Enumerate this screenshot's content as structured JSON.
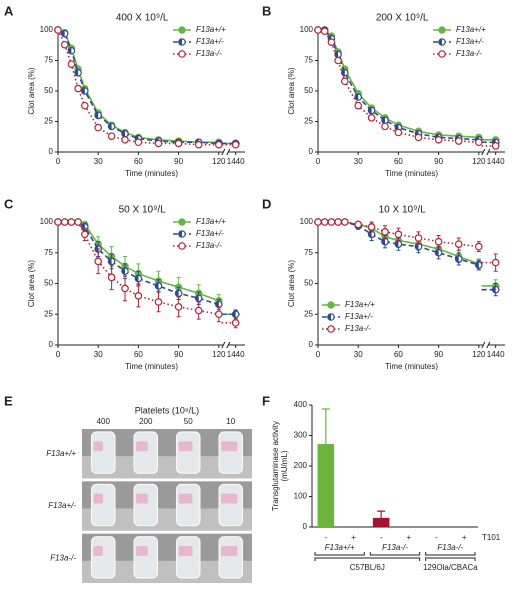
{
  "chart_data": [
    {
      "type": "line",
      "panel": "A",
      "title": "400 X 10⁹/L",
      "xlabel": "Time (minutes)",
      "ylabel": "Clot area (%)",
      "x": [
        0,
        5,
        10,
        15,
        20,
        30,
        40,
        50,
        60,
        75,
        90,
        105,
        120,
        1440
      ],
      "xlim": [
        0,
        1440
      ],
      "axis_break": [
        120,
        1440
      ],
      "xticks": [
        0,
        30,
        60,
        90,
        120,
        1440
      ],
      "ylim": [
        0,
        100
      ],
      "yticks": [
        0,
        25,
        50,
        75,
        100
      ],
      "legend": "upper right",
      "series": [
        {
          "name": "F13a+/+",
          "color": "#6ab547",
          "style": "solid",
          "marker": "filled",
          "values": [
            100,
            98,
            85,
            68,
            52,
            32,
            22,
            16,
            12,
            10,
            9,
            8,
            8,
            7
          ]
        },
        {
          "name": "F13a+/-",
          "color": "#2d4a8e",
          "style": "dashed",
          "marker": "half",
          "values": [
            100,
            97,
            83,
            65,
            50,
            30,
            21,
            15,
            11,
            9,
            8,
            8,
            7,
            7
          ]
        },
        {
          "name": "F13a-/-",
          "color": "#b0233a",
          "style": "dotted",
          "marker": "open",
          "values": [
            100,
            88,
            72,
            52,
            38,
            20,
            13,
            10,
            8,
            7,
            7,
            6,
            6,
            6
          ]
        }
      ]
    },
    {
      "type": "line",
      "panel": "B",
      "title": "200 X 10⁹/L",
      "xlabel": "Time (minutes)",
      "ylabel": "Clot area (%)",
      "x": [
        0,
        5,
        10,
        15,
        20,
        30,
        40,
        50,
        60,
        75,
        90,
        105,
        120,
        1440
      ],
      "xlim": [
        0,
        1440
      ],
      "axis_break": [
        120,
        1440
      ],
      "xticks": [
        0,
        30,
        60,
        90,
        120,
        1440
      ],
      "ylim": [
        0,
        100
      ],
      "yticks": [
        0,
        25,
        50,
        75,
        100
      ],
      "legend": "upper right",
      "series": [
        {
          "name": "F13a+/+",
          "color": "#6ab547",
          "style": "solid",
          "marker": "filled",
          "values": [
            100,
            100,
            95,
            82,
            68,
            48,
            36,
            28,
            22,
            17,
            14,
            13,
            12,
            10
          ]
        },
        {
          "name": "F13a+/-",
          "color": "#2d4a8e",
          "style": "dashed",
          "marker": "half",
          "values": [
            100,
            100,
            93,
            80,
            65,
            45,
            34,
            26,
            20,
            15,
            12,
            11,
            10,
            8
          ]
        },
        {
          "name": "F13a-/-",
          "color": "#b0233a",
          "style": "dotted",
          "marker": "open",
          "values": [
            100,
            99,
            90,
            75,
            58,
            38,
            28,
            21,
            16,
            12,
            10,
            9,
            8,
            5
          ]
        }
      ]
    },
    {
      "type": "line",
      "panel": "C",
      "title": "50 X 10⁹/L",
      "xlabel": "Time (minutes)",
      "ylabel": "Clot area (%)",
      "x": [
        0,
        5,
        10,
        15,
        20,
        30,
        40,
        50,
        60,
        75,
        90,
        105,
        120,
        1440
      ],
      "xlim": [
        0,
        1440
      ],
      "axis_break": [
        120,
        1440
      ],
      "xticks": [
        0,
        30,
        60,
        90,
        120,
        1440
      ],
      "ylim": [
        0,
        100
      ],
      "yticks": [
        0,
        25,
        50,
        75,
        100
      ],
      "legend": "upper right",
      "series": [
        {
          "name": "F13a+/+",
          "color": "#6ab547",
          "style": "solid",
          "marker": "filled",
          "values": [
            100,
            100,
            100,
            100,
            98,
            82,
            72,
            64,
            58,
            52,
            47,
            42,
            36,
            25
          ],
          "errors": [
            0,
            0,
            0,
            0,
            2,
            6,
            8,
            8,
            8,
            8,
            8,
            7,
            5,
            4
          ]
        },
        {
          "name": "F13a+/-",
          "color": "#2d4a8e",
          "style": "dashed",
          "marker": "half",
          "values": [
            100,
            100,
            100,
            100,
            96,
            78,
            68,
            60,
            54,
            48,
            42,
            38,
            33,
            25
          ],
          "errors": [
            0,
            0,
            0,
            0,
            3,
            6,
            6,
            6,
            6,
            5,
            5,
            5,
            4,
            3
          ]
        },
        {
          "name": "F13a-/-",
          "color": "#b0233a",
          "style": "dotted",
          "marker": "open",
          "values": [
            100,
            100,
            100,
            100,
            90,
            68,
            55,
            46,
            40,
            35,
            31,
            28,
            25,
            18
          ],
          "errors": [
            0,
            0,
            0,
            0,
            5,
            10,
            10,
            10,
            9,
            8,
            8,
            7,
            6,
            4
          ]
        }
      ]
    },
    {
      "type": "line",
      "panel": "D",
      "title": "10 X 10⁹/L",
      "xlabel": "Time (minutes)",
      "ylabel": "Clot area (%)",
      "x": [
        0,
        5,
        10,
        15,
        20,
        30,
        40,
        50,
        60,
        75,
        90,
        105,
        120,
        1440
      ],
      "xlim": [
        0,
        1440
      ],
      "axis_break": [
        120,
        1440
      ],
      "xticks": [
        0,
        30,
        60,
        90,
        120,
        1440
      ],
      "ylim": [
        0,
        100
      ],
      "yticks": [
        0,
        25,
        50,
        75,
        100
      ],
      "legend": "lower left",
      "series": [
        {
          "name": "F13a+/+",
          "color": "#6ab547",
          "style": "solid",
          "marker": "filled",
          "values": [
            100,
            100,
            100,
            100,
            100,
            98,
            95,
            88,
            85,
            82,
            78,
            72,
            66,
            48
          ],
          "errors": [
            0,
            0,
            0,
            0,
            0,
            2,
            4,
            5,
            5,
            5,
            5,
            5,
            4,
            5
          ]
        },
        {
          "name": "F13a+/-",
          "color": "#2d4a8e",
          "style": "dashed",
          "marker": "half",
          "values": [
            100,
            100,
            100,
            100,
            100,
            97,
            90,
            84,
            82,
            80,
            75,
            70,
            65,
            45
          ],
          "errors": [
            0,
            0,
            0,
            0,
            0,
            3,
            5,
            5,
            5,
            5,
            5,
            5,
            4,
            5
          ]
        },
        {
          "name": "F13a-/-",
          "color": "#b0233a",
          "style": "dotted",
          "marker": "open",
          "values": [
            100,
            100,
            100,
            100,
            100,
            98,
            96,
            92,
            90,
            87,
            84,
            82,
            80,
            67
          ],
          "errors": [
            0,
            0,
            0,
            0,
            0,
            2,
            4,
            5,
            5,
            5,
            5,
            5,
            4,
            7
          ]
        }
      ]
    },
    {
      "type": "photo",
      "panel": "E",
      "title": "Platelets (10⁹/L)",
      "categories": [
        "400",
        "200",
        "50",
        "10"
      ],
      "rows": [
        "F13a+/+",
        "F13a+/-",
        "F13a-/-"
      ]
    },
    {
      "type": "bar",
      "panel": "F",
      "ylabel": [
        "Transglutaminase activity",
        "(mU/mL)"
      ],
      "categories": [
        "-",
        "+",
        "-",
        "+",
        "-",
        "+"
      ],
      "values": [
        272,
        0,
        30,
        0,
        0,
        0
      ],
      "errors": [
        115,
        0,
        22,
        0,
        0,
        0
      ],
      "colors": [
        "#6cb33f",
        "#6cb33f",
        "#a3152f",
        "#a3152f",
        "#a3152f",
        "#a3152f"
      ],
      "ylim": [
        0,
        400
      ],
      "yticks": [
        0,
        100,
        200,
        300,
        400
      ],
      "row_label": "T101",
      "groups": [
        {
          "label": "F13a+/+",
          "from": 0,
          "to": 1
        },
        {
          "label": "F13a-/-",
          "from": 2,
          "to": 3
        },
        {
          "label": "F13a-/-",
          "from": 4,
          "to": 5
        }
      ],
      "strains": [
        {
          "label": "C57BL/6J",
          "from": 0,
          "to": 3
        },
        {
          "label": "129Ola/CBACa",
          "from": 4,
          "to": 5
        }
      ]
    }
  ]
}
